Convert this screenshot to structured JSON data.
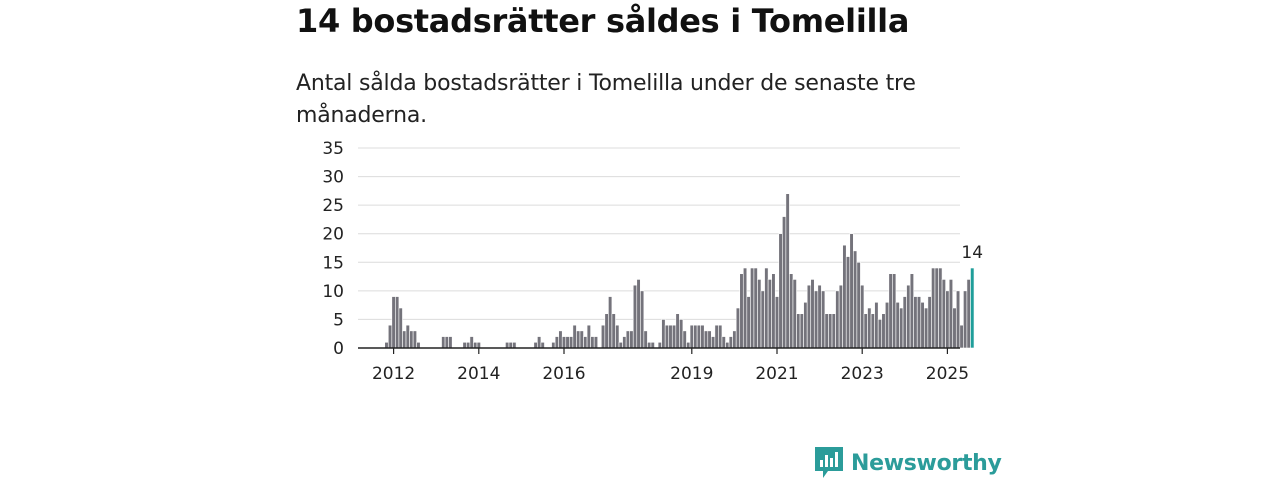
{
  "headline": "14 bostadsrätter såldes i Tomelilla",
  "subtitle": "Antal sålda bostadsrätter i Tomelilla under de senaste tre månaderna.",
  "brand": {
    "name": "Newsworthy",
    "color": "#2b9c9a",
    "icon": "bar-chart-speech-bubble-icon"
  },
  "colors": {
    "bar": "#74737b",
    "highlight": "#1f9e9a",
    "grid": "#dcdcdc"
  },
  "chart_data": {
    "type": "bar",
    "title": "",
    "xlabel": "",
    "ylabel": "",
    "ylim": [
      0,
      35
    ],
    "yticks": [
      0,
      5,
      10,
      15,
      20,
      25,
      30,
      35
    ],
    "grid": true,
    "x_start": "2011-11",
    "x_ticks": [
      {
        "label": "2012",
        "index": 2
      },
      {
        "label": "2014",
        "index": 26
      },
      {
        "label": "2016",
        "index": 50
      },
      {
        "label": "2019",
        "index": 86
      },
      {
        "label": "2021",
        "index": 110
      },
      {
        "label": "2023",
        "index": 134
      },
      {
        "label": "2025",
        "index": 158
      }
    ],
    "highlight_label": "14",
    "values": [
      1,
      4,
      9,
      9,
      7,
      3,
      4,
      3,
      3,
      1,
      0,
      0,
      0,
      0,
      0,
      0,
      2,
      2,
      2,
      0,
      0,
      0,
      1,
      1,
      2,
      1,
      1,
      0,
      0,
      0,
      0,
      0,
      0,
      0,
      1,
      1,
      1,
      0,
      0,
      0,
      0,
      0,
      1,
      2,
      1,
      0,
      0,
      1,
      2,
      3,
      2,
      2,
      2,
      4,
      3,
      3,
      2,
      4,
      2,
      2,
      0,
      4,
      6,
      9,
      6,
      4,
      1,
      2,
      3,
      3,
      11,
      12,
      10,
      3,
      1,
      1,
      0,
      1,
      5,
      4,
      4,
      4,
      6,
      5,
      3,
      1,
      4,
      4,
      4,
      4,
      3,
      3,
      2,
      4,
      4,
      2,
      1,
      2,
      3,
      7,
      13,
      14,
      9,
      14,
      14,
      12,
      10,
      14,
      12,
      13,
      9,
      20,
      23,
      27,
      13,
      12,
      6,
      6,
      8,
      11,
      12,
      10,
      11,
      10,
      6,
      6,
      6,
      10,
      11,
      18,
      16,
      20,
      17,
      15,
      11,
      6,
      7,
      6,
      8,
      5,
      6,
      8,
      13,
      13,
      8,
      7,
      9,
      11,
      13,
      9,
      9,
      8,
      7,
      9,
      14,
      14,
      14,
      12,
      10,
      12,
      7,
      10,
      4,
      10,
      12,
      14
    ]
  }
}
